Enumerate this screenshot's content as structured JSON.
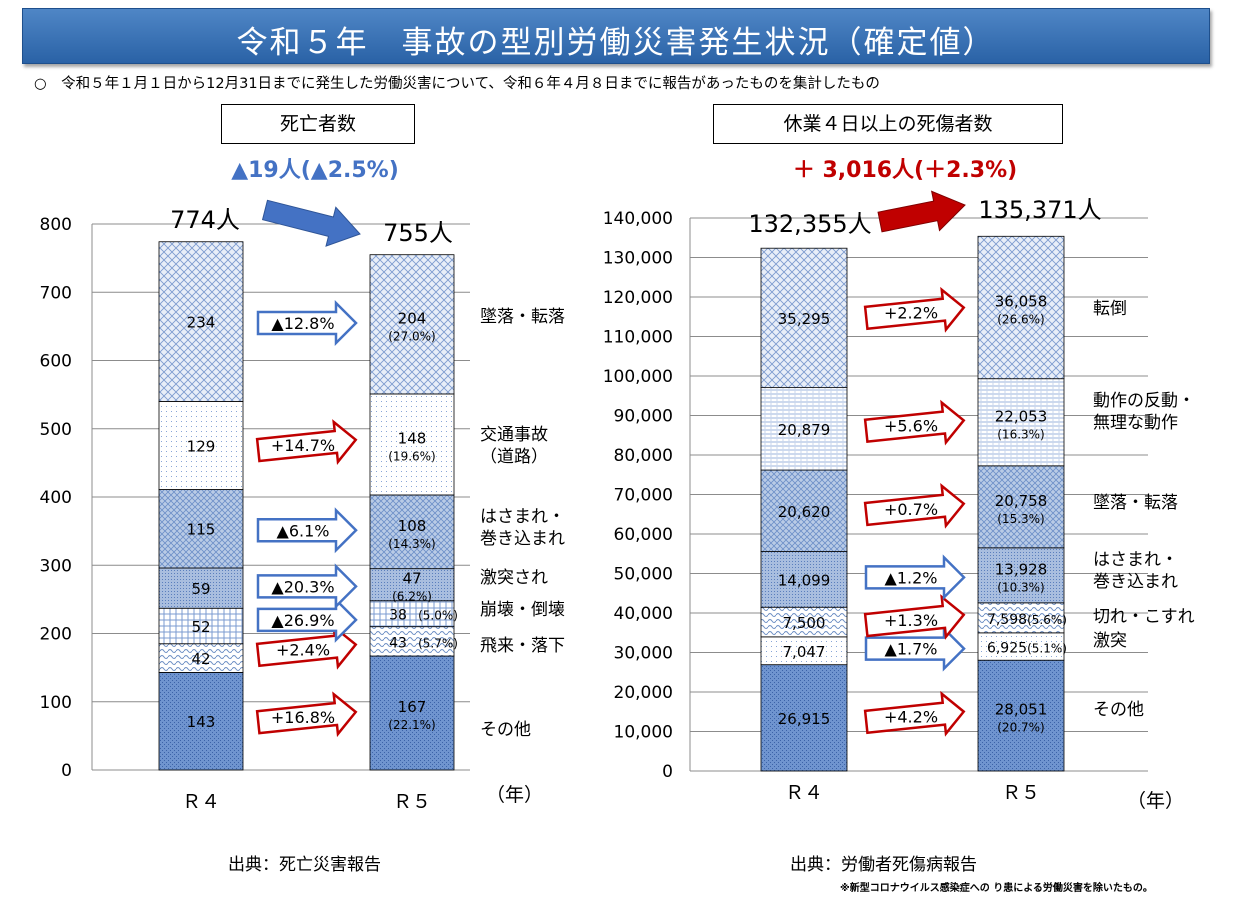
{
  "title": "令和５年　事故の型別労働災害発生状況（確定値）",
  "note": "○　令和５年１月１日から12月31日までに発生した労働災害について、令和６年４月８日までに報告があったものを集計したもの",
  "footnote": "※新型コロナウイルス感染症への り患による労働災害を除いたもの。",
  "colors": {
    "increase": "#c00000",
    "decrease": "#4472c4",
    "title_bg": "#3a73b8"
  },
  "chart_data": [
    {
      "type": "bar",
      "stacked": true,
      "title": "死亡者数",
      "change_text": "▲19人(▲2.5%)",
      "categories": [
        "Ｒ４",
        "Ｒ５"
      ],
      "totals": [
        774,
        755
      ],
      "total_labels": [
        "774人",
        "755人"
      ],
      "xlabel": "（年）",
      "ylim": [
        0,
        800
      ],
      "yticks": [
        0,
        100,
        200,
        300,
        400,
        500,
        600,
        700,
        800
      ],
      "source": "出典：死亡災害報告",
      "series": [
        {
          "name": "その他",
          "values": [
            143,
            167
          ],
          "labels": [
            "143",
            "167"
          ],
          "share": "(22.1%)",
          "change": "+16.8%",
          "direction": "up"
        },
        {
          "name": "飛来・落下",
          "values": [
            42,
            43
          ],
          "labels": [
            "42",
            "43"
          ],
          "share": "(5.7%)",
          "change": "+2.4%",
          "direction": "up"
        },
        {
          "name": "崩壊・倒壊",
          "values": [
            52,
            38
          ],
          "labels": [
            "52",
            "38"
          ],
          "share": "(5.0%)",
          "change": "▲26.9%",
          "direction": "down"
        },
        {
          "name": "激突され",
          "values": [
            59,
            47
          ],
          "labels": [
            "59",
            "47"
          ],
          "share": "(6.2%)",
          "change": "▲20.3%",
          "direction": "down"
        },
        {
          "name": "はさまれ・巻き込まれ",
          "values": [
            115,
            108
          ],
          "labels": [
            "115",
            "108"
          ],
          "share": "(14.3%)",
          "change": "▲6.1%",
          "direction": "down"
        },
        {
          "name": "交通事故（道路）",
          "values": [
            129,
            148
          ],
          "labels": [
            "129",
            "148"
          ],
          "share": "(19.6%)",
          "change": "+14.7%",
          "direction": "up"
        },
        {
          "name": "墜落・転落",
          "values": [
            234,
            204
          ],
          "labels": [
            "234",
            "204"
          ],
          "share": "(27.0%)",
          "change": "▲12.8%",
          "direction": "down"
        }
      ]
    },
    {
      "type": "bar",
      "stacked": true,
      "title": "休業４日以上の死傷者数",
      "change_text": "＋ 3,016人(＋2.3%)",
      "categories": [
        "Ｒ４",
        "Ｒ５"
      ],
      "totals": [
        132355,
        135371
      ],
      "total_labels": [
        "132,355人",
        "135,371人"
      ],
      "xlabel": "（年）",
      "ylim": [
        0,
        140000
      ],
      "yticks": [
        0,
        10000,
        20000,
        30000,
        40000,
        50000,
        60000,
        70000,
        80000,
        90000,
        100000,
        110000,
        120000,
        130000,
        140000
      ],
      "ytick_labels": [
        "0",
        "10,000",
        "20,000",
        "30,000",
        "40,000",
        "50,000",
        "60,000",
        "70,000",
        "80,000",
        "90,000",
        "100,000",
        "110,000",
        "120,000",
        "130,000",
        "140,000"
      ],
      "source": "出典：労働者死傷病報告",
      "series": [
        {
          "name": "その他",
          "values": [
            26915,
            28051
          ],
          "labels": [
            "26,915",
            "28,051"
          ],
          "share": "(20.7%)",
          "change": "+4.2%",
          "direction": "up"
        },
        {
          "name": "激突",
          "values": [
            7047,
            6925
          ],
          "labels": [
            "7,047",
            "6,925"
          ],
          "share": "(5.1%)",
          "change": "▲1.7%",
          "direction": "down"
        },
        {
          "name": "切れ・こすれ",
          "values": [
            7500,
            7598
          ],
          "labels": [
            "7,500",
            "7,598"
          ],
          "share": "(5.6%)",
          "change": "+1.3%",
          "direction": "up"
        },
        {
          "name": "はさまれ・巻き込まれ",
          "values": [
            14099,
            13928
          ],
          "labels": [
            "14,099",
            "13,928"
          ],
          "share": "(10.3%)",
          "change": "▲1.2%",
          "direction": "down"
        },
        {
          "name": "墜落・転落",
          "values": [
            20620,
            20758
          ],
          "labels": [
            "20,620",
            "20,758"
          ],
          "share": "(15.3%)",
          "change": "+0.7%",
          "direction": "up"
        },
        {
          "name": "動作の反動・無理な動作",
          "values": [
            20879,
            22053
          ],
          "labels": [
            "20,879",
            "22,053"
          ],
          "share": "(16.3%)",
          "change": "+5.6%",
          "direction": "up"
        },
        {
          "name": "転倒",
          "values": [
            35295,
            36058
          ],
          "labels": [
            "35,295",
            "36,058"
          ],
          "share": "(26.6%)",
          "change": "+2.2%",
          "direction": "up"
        }
      ]
    }
  ]
}
